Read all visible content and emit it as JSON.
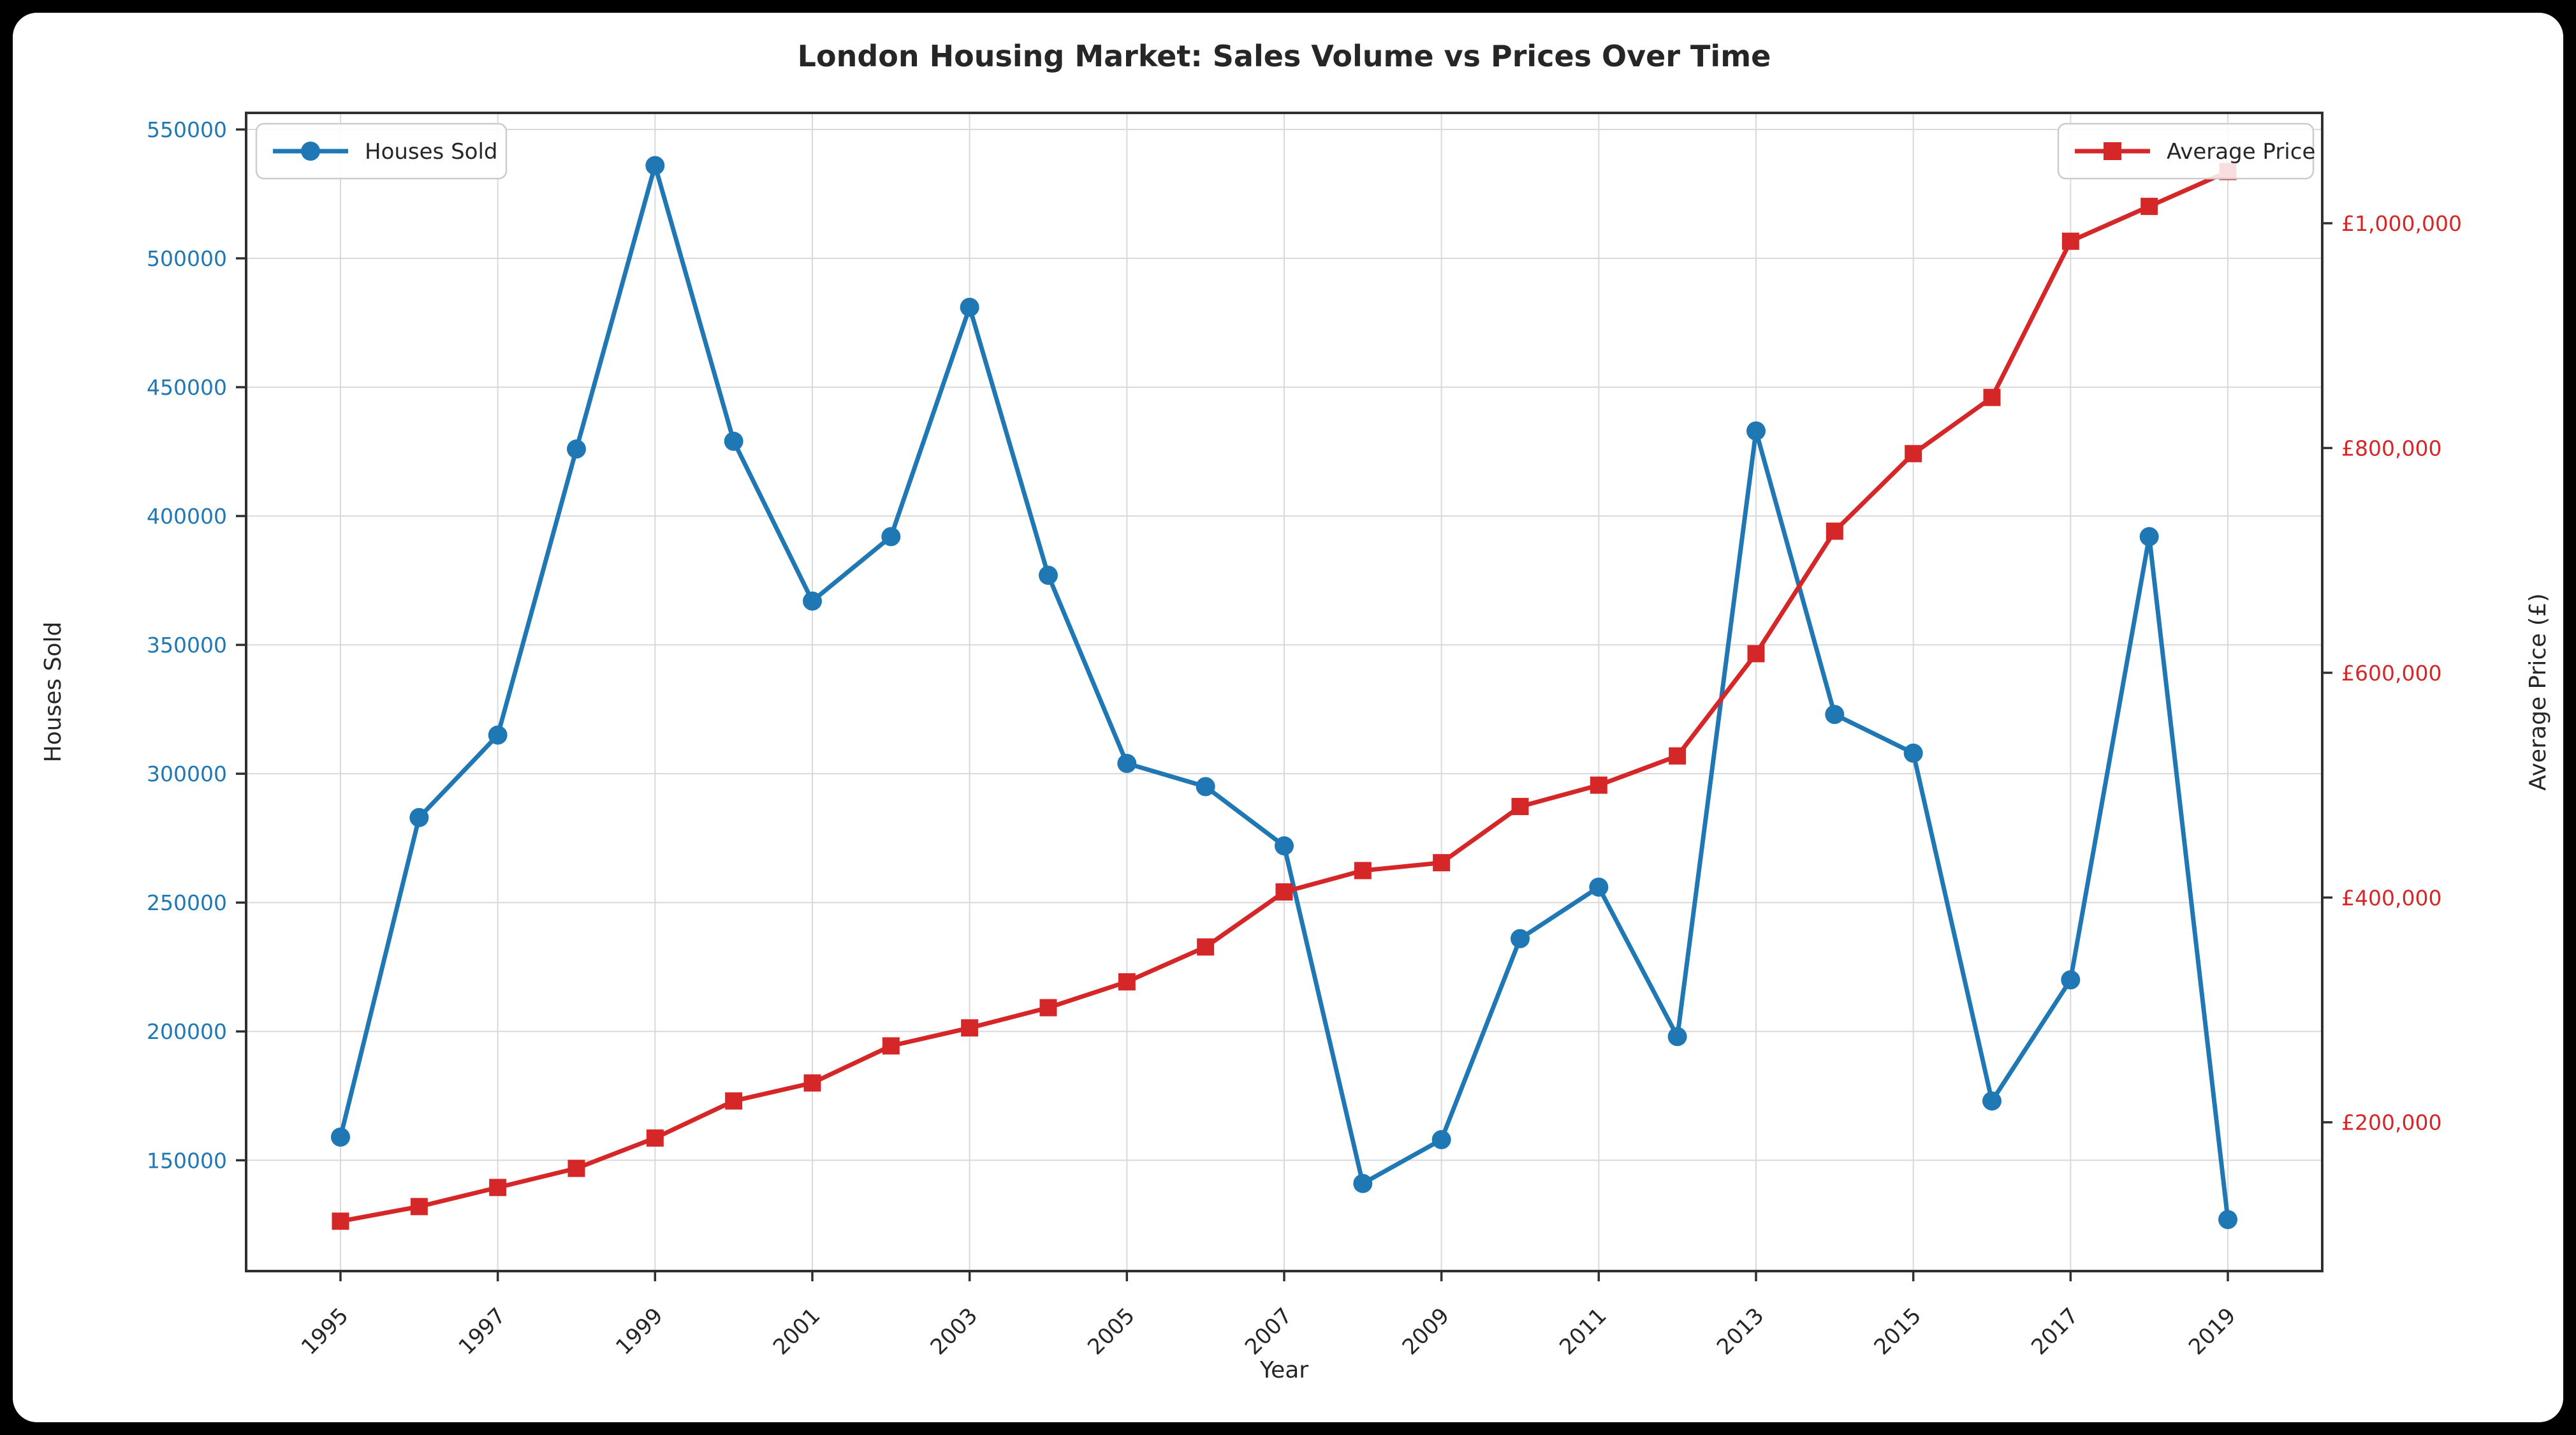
{
  "title": "London Housing Market: Sales Volume vs Prices Over Time",
  "legend": [
    {
      "label": "Houses Sold"
    },
    {
      "label": "Average Price"
    }
  ],
  "colors": {
    "houses_sold": "#1f77b4",
    "average_price": "#d62728",
    "grid": "#d9d9d9",
    "spine": "#303030",
    "text": "#262626",
    "figure_background": "#ffffff",
    "page_background": "#000000",
    "legend_fill": "rgba(255,255,255,0.85)",
    "legend_border": "#cccccc"
  },
  "chart_data": {
    "type": "line",
    "title": "London Housing Market: Sales Volume vs Prices Over Time",
    "xlabel": "Year",
    "ylabel_left": "Houses Sold",
    "ylabel_right": "Average Price (£)",
    "x": [
      1995,
      1996,
      1997,
      1998,
      1999,
      2000,
      2001,
      2002,
      2003,
      2004,
      2005,
      2006,
      2007,
      2008,
      2009,
      2010,
      2011,
      2012,
      2013,
      2014,
      2015,
      2016,
      2017,
      2018,
      2019
    ],
    "series": [
      {
        "name": "Houses Sold",
        "axis": "left",
        "color": "#1f77b4",
        "marker": "circle",
        "values": [
          159000,
          283000,
          315000,
          426000,
          536000,
          429000,
          367000,
          392000,
          481000,
          377000,
          304000,
          295000,
          272000,
          141000,
          158000,
          236000,
          256000,
          198000,
          433000,
          323000,
          308000,
          173000,
          220000,
          392000,
          127000
        ]
      },
      {
        "name": "Average Price",
        "axis": "right",
        "color": "#d62728",
        "marker": "square",
        "values": [
          112000,
          125000,
          142000,
          159000,
          186000,
          219000,
          235000,
          268000,
          284000,
          302000,
          325000,
          356000,
          405000,
          424000,
          431000,
          481000,
          500000,
          526000,
          617000,
          726000,
          795000,
          845000,
          984000,
          1015000,
          1046000
        ]
      }
    ],
    "x_ticks": [
      1995,
      1997,
      1999,
      2001,
      2003,
      2005,
      2007,
      2009,
      2011,
      2013,
      2015,
      2017,
      2019
    ],
    "y_left_ticks": [
      150000,
      200000,
      250000,
      300000,
      350000,
      400000,
      450000,
      500000,
      550000
    ],
    "y_right_ticks": [
      200000,
      400000,
      600000,
      800000,
      1000000
    ],
    "y_right_prefix": "£",
    "xlim": [
      1993.8,
      2020.2
    ],
    "ylim_left": [
      107000,
      556440
    ],
    "ylim_right": [
      67600,
      1098200
    ],
    "grid": true,
    "legend_positions": [
      "upper left",
      "upper right"
    ]
  }
}
